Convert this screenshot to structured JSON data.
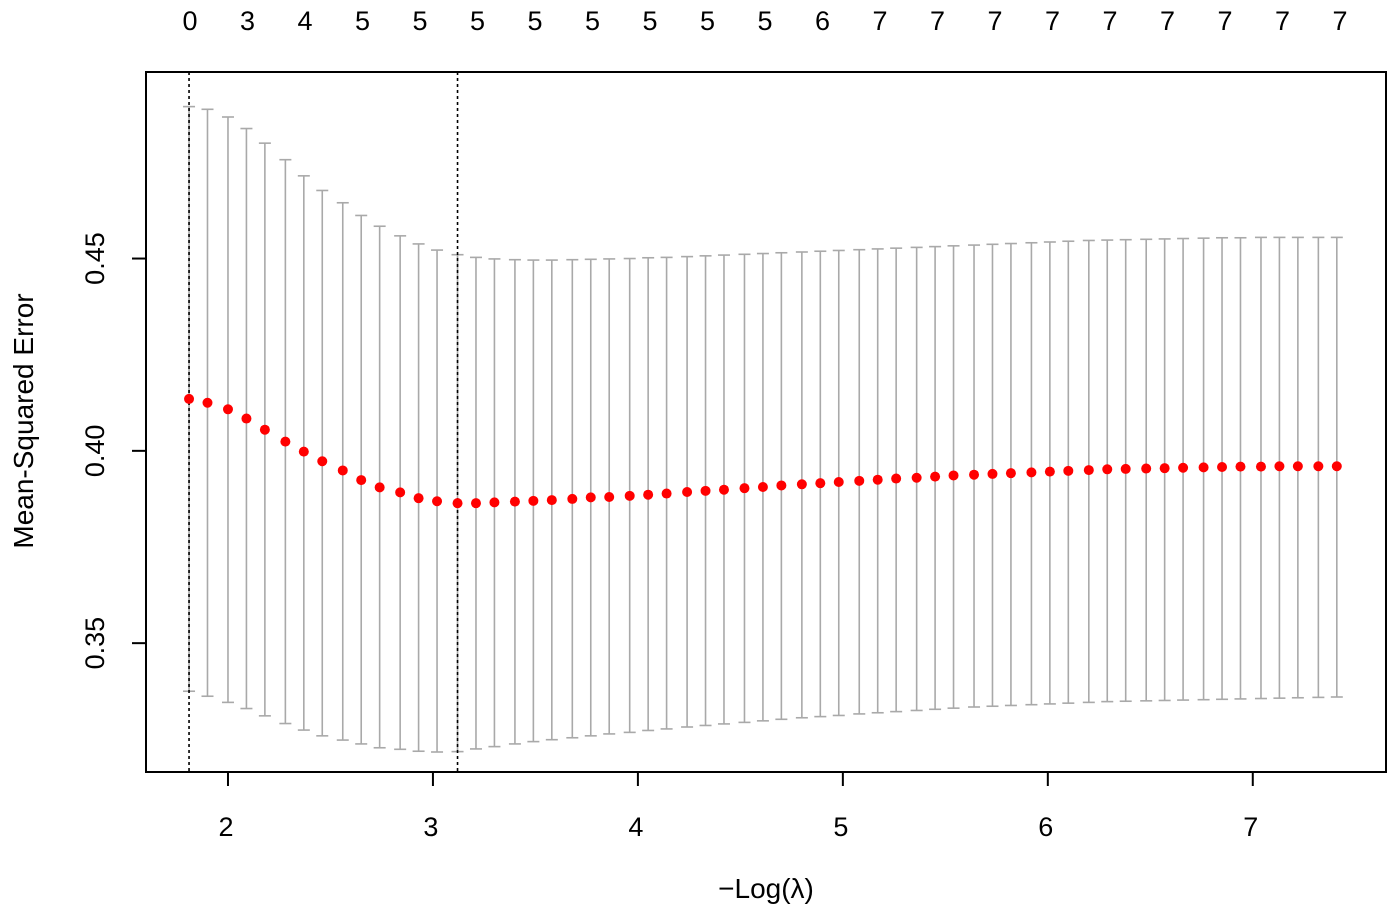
{
  "chart_data": {
    "type": "scatter",
    "xlabel": "−Log(λ)",
    "ylabel": "Mean-Squared Error",
    "xlim": [
      1.6,
      7.65
    ],
    "ylim": [
      0.3165,
      0.4985
    ],
    "x_ticks": [
      2,
      3,
      4,
      5,
      6,
      7
    ],
    "x_tick_labels": [
      "2",
      "3",
      "4",
      "5",
      "6",
      "7"
    ],
    "y_ticks": [
      0.35,
      0.4,
      0.45
    ],
    "y_tick_labels": [
      "0.35",
      "0.40",
      "0.45"
    ],
    "top_axis_labels": [
      "0",
      "3",
      "4",
      "5",
      "5",
      "5",
      "5",
      "5",
      "5",
      "5",
      "5",
      "6",
      "7",
      "7",
      "7",
      "7",
      "7",
      "7",
      "7",
      "7",
      "7"
    ],
    "vlines": [
      1.81,
      3.12
    ],
    "grid": false,
    "colors": {
      "points": "#ff0000",
      "error_bars": "#a9a9a9",
      "vlines": "#000000",
      "frame": "#000000"
    },
    "series": [
      {
        "x": [
          1.81,
          1.9,
          2.0,
          2.09,
          2.18,
          2.28,
          2.37,
          2.46,
          2.56,
          2.65,
          2.74,
          2.84,
          2.93,
          3.02,
          3.12,
          3.21,
          3.3,
          3.4,
          3.49,
          3.58,
          3.68,
          3.77,
          3.86,
          3.96,
          4.05,
          4.14,
          4.24,
          4.33,
          4.42,
          4.52,
          4.61,
          4.7,
          4.8,
          4.89,
          4.98,
          5.08,
          5.17,
          5.26,
          5.36,
          5.45,
          5.54,
          5.64,
          5.73,
          5.82,
          5.92,
          6.01,
          6.1,
          6.2,
          6.29,
          6.38,
          6.48,
          6.57,
          6.66,
          6.76,
          6.85,
          6.94,
          7.04,
          7.13,
          7.22,
          7.32,
          7.41
        ],
        "y": [
          0.4135,
          0.4125,
          0.4108,
          0.4084,
          0.4055,
          0.4024,
          0.3998,
          0.3973,
          0.3949,
          0.3924,
          0.3905,
          0.3892,
          0.3877,
          0.3869,
          0.3864,
          0.3864,
          0.3866,
          0.3868,
          0.387,
          0.3872,
          0.3875,
          0.3879,
          0.388,
          0.3883,
          0.3886,
          0.3889,
          0.3893,
          0.3896,
          0.3899,
          0.3903,
          0.3906,
          0.391,
          0.3913,
          0.3916,
          0.3919,
          0.3922,
          0.3925,
          0.3928,
          0.393,
          0.3933,
          0.3936,
          0.3938,
          0.394,
          0.3942,
          0.3944,
          0.3946,
          0.3948,
          0.395,
          0.3952,
          0.3953,
          0.3954,
          0.3955,
          0.3956,
          0.3957,
          0.3958,
          0.3959,
          0.3959,
          0.396,
          0.396,
          0.396,
          0.396
        ],
        "upper": [
          0.4895,
          0.4888,
          0.4868,
          0.4838,
          0.48,
          0.4757,
          0.4715,
          0.4677,
          0.4645,
          0.4612,
          0.4584,
          0.4559,
          0.4538,
          0.4522,
          0.451,
          0.4503,
          0.4499,
          0.4497,
          0.4496,
          0.4496,
          0.4497,
          0.4498,
          0.4499,
          0.45,
          0.4502,
          0.4503,
          0.4505,
          0.4507,
          0.4509,
          0.4511,
          0.4513,
          0.4515,
          0.4517,
          0.4519,
          0.4521,
          0.4523,
          0.4525,
          0.4527,
          0.4529,
          0.4531,
          0.4533,
          0.4535,
          0.4537,
          0.4539,
          0.4541,
          0.4543,
          0.4545,
          0.4547,
          0.4548,
          0.4549,
          0.455,
          0.4551,
          0.4552,
          0.4553,
          0.4554,
          0.4554,
          0.4555,
          0.4555,
          0.4555,
          0.4555,
          0.4555
        ],
        "lower": [
          0.3375,
          0.3362,
          0.3346,
          0.333,
          0.3311,
          0.3291,
          0.3274,
          0.3259,
          0.3248,
          0.3238,
          0.3228,
          0.3224,
          0.3219,
          0.3217,
          0.3218,
          0.3225,
          0.3231,
          0.3238,
          0.3244,
          0.3249,
          0.3254,
          0.3259,
          0.3264,
          0.3268,
          0.3273,
          0.3277,
          0.3282,
          0.3286,
          0.329,
          0.3294,
          0.3298,
          0.3302,
          0.3306,
          0.3309,
          0.3312,
          0.3316,
          0.3319,
          0.3322,
          0.3325,
          0.3328,
          0.3331,
          0.3334,
          0.3336,
          0.3338,
          0.334,
          0.3342,
          0.3344,
          0.3346,
          0.3348,
          0.3349,
          0.335,
          0.3351,
          0.3352,
          0.3353,
          0.3354,
          0.3355,
          0.3356,
          0.3357,
          0.3358,
          0.3359,
          0.336
        ]
      }
    ]
  }
}
